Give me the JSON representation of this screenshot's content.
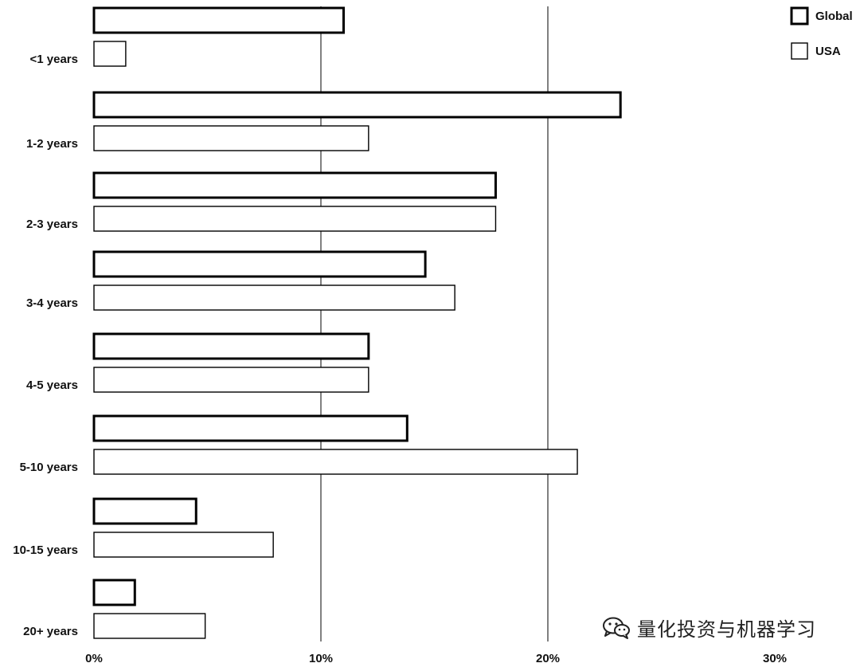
{
  "chart_data": {
    "type": "bar",
    "orientation": "horizontal",
    "categories": [
      "<1 years",
      "1-2 years",
      "2-3 years",
      "3-4 years",
      "4-5 years",
      "5-10 years",
      "10-15 years",
      "20+ years"
    ],
    "series": [
      {
        "name": "Global",
        "values": [
          11.0,
          23.2,
          17.7,
          14.6,
          12.1,
          13.8,
          4.5,
          1.8
        ],
        "color": "#000000"
      },
      {
        "name": "USA",
        "values": [
          1.4,
          12.1,
          17.7,
          15.9,
          12.1,
          21.3,
          7.9,
          4.9
        ],
        "color": "#000000"
      }
    ],
    "xticks": [
      "0%",
      "10%",
      "20%",
      "30%"
    ],
    "xlim": [
      0,
      30
    ],
    "grid": true,
    "legend_position": "top-right"
  },
  "watermark": {
    "text": "量化投资与机器学习",
    "icon": "wechat-icon"
  }
}
